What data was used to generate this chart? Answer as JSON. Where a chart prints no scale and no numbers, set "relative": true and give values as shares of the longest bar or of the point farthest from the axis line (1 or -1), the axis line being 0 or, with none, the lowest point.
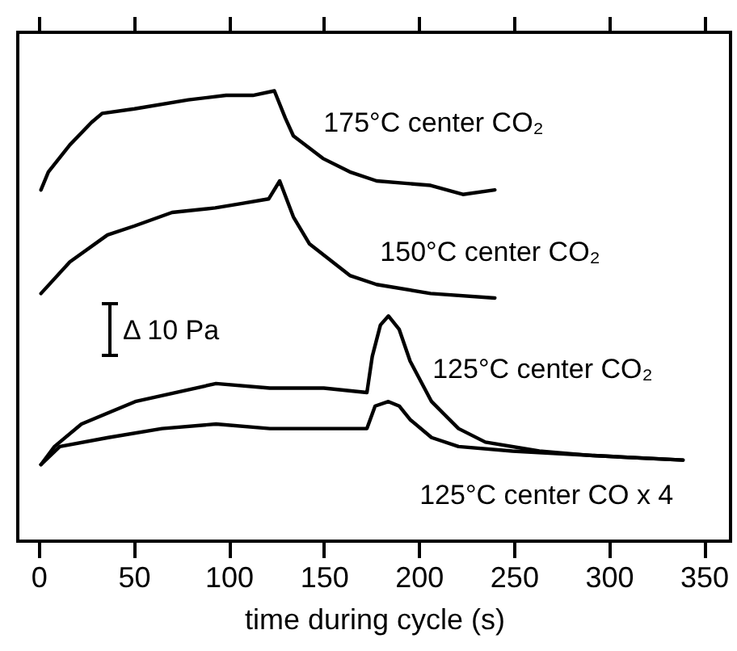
{
  "chart_data": {
    "type": "line",
    "relative": true,
    "xlabel": "time during cycle (s)",
    "xlim": [
      -11,
      364
    ],
    "xticks": [
      0,
      50,
      100,
      150,
      200,
      250,
      300,
      350
    ],
    "line_style": "solid",
    "annotations": [
      "Δ 10 Pa"
    ],
    "series": [
      {
        "name": "175°C center CO₂",
        "color": "#000000",
        "x": [
          1.2,
          5.1,
          16.4,
          27.8,
          33.4,
          50.4,
          78.7,
          98.6,
          112.7,
          124,
          129.7,
          134,
          149.5,
          163.7,
          177.8,
          206.2,
          223.2,
          240
        ],
        "values": [
          0.78,
          0.82,
          0.88,
          0.93,
          0.95,
          0.96,
          0.98,
          0.99,
          0.99,
          1,
          0.94,
          0.9,
          0.85,
          0.82,
          0.8,
          0.79,
          0.77,
          0.78
        ]
      },
      {
        "name": "150°C center CO₂",
        "color": "#000000",
        "x": [
          1.2,
          16.4,
          36.2,
          50.4,
          70.2,
          92.9,
          107,
          121,
          126.8,
          134,
          142.5,
          163.7,
          177.8,
          206.2,
          240
        ],
        "values": [
          0.55,
          0.62,
          0.68,
          0.7,
          0.73,
          0.74,
          0.75,
          0.76,
          0.8,
          0.72,
          0.66,
          0.59,
          0.57,
          0.55,
          0.54
        ]
      },
      {
        "name": "125°C center CO₂",
        "color": "#000000",
        "x": [
          1.2,
          8.3,
          22.5,
          50.8,
          93.3,
          121.6,
          150,
          172.7,
          175.5,
          179.8,
          184,
          189.7,
          195.4,
          206.7,
          220.9,
          235,
          263.4,
          291.8,
          339
        ],
        "values": [
          0.17,
          0.21,
          0.26,
          0.31,
          0.35,
          0.34,
          0.34,
          0.33,
          0.41,
          0.48,
          0.5,
          0.47,
          0.4,
          0.31,
          0.25,
          0.22,
          0.2,
          0.19,
          0.18
        ]
      },
      {
        "name": "125°C center CO x 4",
        "color": "#000000",
        "x": [
          1.2,
          11.1,
          36.6,
          64.9,
          93.3,
          121.6,
          150,
          172.7,
          177,
          184,
          189.7,
          195.4,
          206.7,
          220.9,
          249.3,
          291.8,
          339
        ],
        "values": [
          0.17,
          0.21,
          0.23,
          0.25,
          0.26,
          0.25,
          0.25,
          0.25,
          0.3,
          0.31,
          0.3,
          0.27,
          0.23,
          0.21,
          0.2,
          0.19,
          0.18
        ]
      }
    ]
  }
}
